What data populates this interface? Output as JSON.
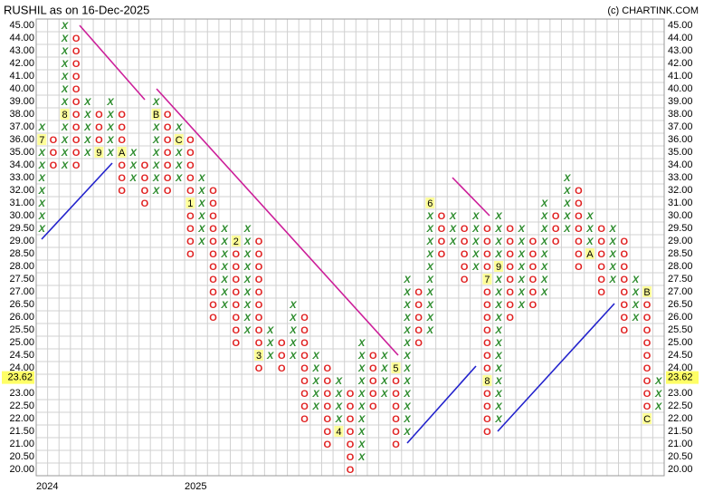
{
  "chart_data": {
    "type": "pnf",
    "title": "RUSHIL as on 16-Dec-2025",
    "source": "(c) CHARTINK.COM",
    "yticks": [
      {
        "value": 45,
        "label": "45.00"
      },
      {
        "value": 44,
        "label": "44.00"
      },
      {
        "value": 43,
        "label": "43.00"
      },
      {
        "value": 42,
        "label": "42.00"
      },
      {
        "value": 41,
        "label": "41.00"
      },
      {
        "value": 40,
        "label": "40.00"
      },
      {
        "value": 39,
        "label": "39.00"
      },
      {
        "value": 38,
        "label": "38.00"
      },
      {
        "value": 37,
        "label": "37.00"
      },
      {
        "value": 36,
        "label": "36.00"
      },
      {
        "value": 35,
        "label": "35.00"
      },
      {
        "value": 34,
        "label": "34.00"
      },
      {
        "value": 33,
        "label": "33.00"
      },
      {
        "value": 32,
        "label": "32.00"
      },
      {
        "value": 31,
        "label": "31.00"
      },
      {
        "value": 30,
        "label": "30.00"
      },
      {
        "value": 29.5,
        "label": "29.50"
      },
      {
        "value": 29,
        "label": "29.00"
      },
      {
        "value": 28.5,
        "label": "28.50"
      },
      {
        "value": 28,
        "label": "28.00"
      },
      {
        "value": 27.5,
        "label": "27.50"
      },
      {
        "value": 27,
        "label": "27.00"
      },
      {
        "value": 26.5,
        "label": "26.50"
      },
      {
        "value": 26,
        "label": "26.00"
      },
      {
        "value": 25.5,
        "label": "25.50"
      },
      {
        "value": 25,
        "label": "25.00"
      },
      {
        "value": 24.5,
        "label": "24.50"
      },
      {
        "value": 24,
        "label": "24.00"
      },
      {
        "value": 23.5,
        "label": "23.50"
      },
      {
        "value": 23,
        "label": "23.00"
      },
      {
        "value": 22.5,
        "label": "22.50"
      },
      {
        "value": 22,
        "label": "22.00"
      },
      {
        "value": 21.5,
        "label": "21.50"
      },
      {
        "value": 21,
        "label": "21.00"
      },
      {
        "value": 20.5,
        "label": "20.50"
      },
      {
        "value": 20,
        "label": "20.00"
      }
    ],
    "last_price": {
      "value": 23.62,
      "label": "23.62"
    },
    "colors": {
      "X": "#2a8a2a",
      "O": "#e02020"
    },
    "grid": true,
    "columns": [
      {
        "type": "X",
        "low": 29.5,
        "high": 37,
        "markers": [
          {
            "value": 36,
            "label": "7"
          }
        ],
        "year": "2024"
      },
      {
        "type": "O",
        "low": 34,
        "high": 36
      },
      {
        "type": "X",
        "low": 34,
        "high": 45,
        "markers": [
          {
            "value": 38,
            "label": "8"
          }
        ]
      },
      {
        "type": "O",
        "low": 34,
        "high": 44
      },
      {
        "type": "X",
        "low": 35,
        "high": 39
      },
      {
        "type": "O",
        "low": 35,
        "high": 38,
        "markers": [
          {
            "value": 35,
            "label": "9"
          }
        ]
      },
      {
        "type": "X",
        "low": 35,
        "high": 39
      },
      {
        "type": "O",
        "low": 32,
        "high": 38,
        "markers": [
          {
            "value": 35,
            "label": "A"
          }
        ]
      },
      {
        "type": "X",
        "low": 33,
        "high": 35
      },
      {
        "type": "O",
        "low": 31,
        "high": 34
      },
      {
        "type": "X",
        "low": 32,
        "high": 39,
        "markers": [
          {
            "value": 38,
            "label": "B"
          }
        ]
      },
      {
        "type": "O",
        "low": 32,
        "high": 38
      },
      {
        "type": "X",
        "low": 33,
        "high": 37,
        "markers": [
          {
            "value": 36,
            "label": "C"
          }
        ]
      },
      {
        "type": "O",
        "low": 28.5,
        "high": 36,
        "markers": [
          {
            "value": 31,
            "label": "1"
          }
        ],
        "year": "2025"
      },
      {
        "type": "X",
        "low": 29,
        "high": 33
      },
      {
        "type": "O",
        "low": 26,
        "high": 32
      },
      {
        "type": "X",
        "low": 26.5,
        "high": 29.5
      },
      {
        "type": "O",
        "low": 25,
        "high": 29,
        "markers": [
          {
            "value": 29,
            "label": "2"
          }
        ]
      },
      {
        "type": "X",
        "low": 25.5,
        "high": 29.5
      },
      {
        "type": "O",
        "low": 24,
        "high": 29,
        "markers": [
          {
            "value": 24.5,
            "label": "3"
          }
        ]
      },
      {
        "type": "X",
        "low": 24.5,
        "high": 25.5
      },
      {
        "type": "O",
        "low": 24,
        "high": 25
      },
      {
        "type": "X",
        "low": 24.5,
        "high": 26.5
      },
      {
        "type": "O",
        "low": 22,
        "high": 26
      },
      {
        "type": "X",
        "low": 22.5,
        "high": 24.5
      },
      {
        "type": "O",
        "low": 21,
        "high": 24
      },
      {
        "type": "X",
        "low": 21.5,
        "high": 23.5,
        "markers": [
          {
            "value": 21.5,
            "label": "4"
          }
        ]
      },
      {
        "type": "O",
        "low": 20,
        "high": 23
      },
      {
        "type": "X",
        "low": 20.5,
        "high": 25
      },
      {
        "type": "O",
        "low": 22.5,
        "high": 24.5
      },
      {
        "type": "X",
        "low": 23,
        "high": 24.5
      },
      {
        "type": "O",
        "low": 21,
        "high": 24,
        "markers": [
          {
            "value": 24,
            "label": "5"
          }
        ]
      },
      {
        "type": "X",
        "low": 21.5,
        "high": 27.5
      },
      {
        "type": "O",
        "low": 25,
        "high": 27
      },
      {
        "type": "X",
        "low": 25.5,
        "high": 31,
        "markers": [
          {
            "value": 31,
            "label": "6"
          }
        ]
      },
      {
        "type": "O",
        "low": 28.5,
        "high": 30
      },
      {
        "type": "X",
        "low": 29,
        "high": 30
      },
      {
        "type": "O",
        "low": 27.5,
        "high": 29.5
      },
      {
        "type": "X",
        "low": 28,
        "high": 30
      },
      {
        "type": "O",
        "low": 21.5,
        "high": 29.5,
        "markers": [
          {
            "value": 27.5,
            "label": "7"
          },
          {
            "value": 23.5,
            "label": "8"
          }
        ]
      },
      {
        "type": "X",
        "low": 22,
        "high": 30,
        "markers": [
          {
            "value": 28,
            "label": "9"
          }
        ]
      },
      {
        "type": "O",
        "low": 26,
        "high": 29.5
      },
      {
        "type": "X",
        "low": 26.5,
        "high": 29.5
      },
      {
        "type": "O",
        "low": 26.5,
        "high": 29
      },
      {
        "type": "X",
        "low": 27,
        "high": 31
      },
      {
        "type": "O",
        "low": 29,
        "high": 30
      },
      {
        "type": "X",
        "low": 29.5,
        "high": 33
      },
      {
        "type": "O",
        "low": 28,
        "high": 32
      },
      {
        "type": "X",
        "low": 28.5,
        "high": 30,
        "markers": [
          {
            "value": 28.5,
            "label": "A"
          }
        ]
      },
      {
        "type": "O",
        "low": 27,
        "high": 29.5
      },
      {
        "type": "X",
        "low": 27.5,
        "high": 29.5
      },
      {
        "type": "O",
        "low": 25.5,
        "high": 29
      },
      {
        "type": "X",
        "low": 26,
        "high": 27.5
      },
      {
        "type": "O",
        "low": 22,
        "high": 27,
        "markers": [
          {
            "value": 27,
            "label": "B"
          },
          {
            "value": 22,
            "label": "C"
          }
        ]
      },
      {
        "type": "X",
        "low": 22.5,
        "high": 23.5
      }
    ]
  }
}
